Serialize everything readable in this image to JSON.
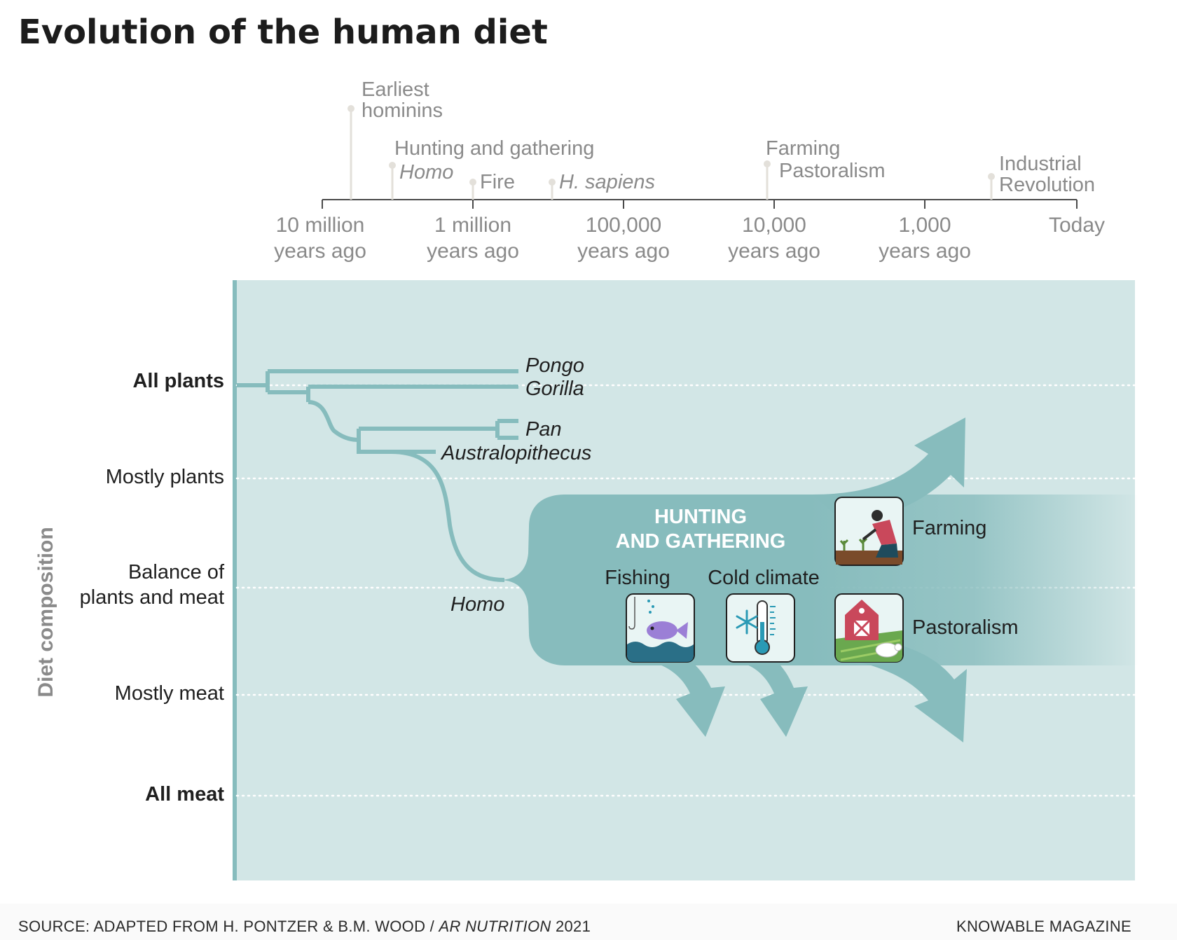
{
  "title": "Evolution of the human diet",
  "timeline": {
    "ticks": [
      {
        "line1": "10 million",
        "line2": "years ago"
      },
      {
        "line1": "1 million",
        "line2": "years ago"
      },
      {
        "line1": "100,000",
        "line2": "years ago"
      },
      {
        "line1": "10,000",
        "line2": "years ago"
      },
      {
        "line1": "1,000",
        "line2": "years ago"
      },
      {
        "line1": "Today",
        "line2": ""
      }
    ],
    "events": {
      "earliest_hominins": {
        "line1": "Earliest",
        "line2": "hominins"
      },
      "hunting_gathering": "Hunting and gathering",
      "homo": "Homo",
      "fire": "Fire",
      "h_sapiens": "H. sapiens",
      "farming": "Farming",
      "pastoralism": "Pastoralism",
      "industrial": {
        "line1": "Industrial",
        "line2": "Revolution"
      }
    }
  },
  "y_axis": {
    "title": "Diet composition",
    "levels": {
      "all_plants": "All plants",
      "mostly_plants": "Mostly plants",
      "balance_line1": "Balance of",
      "balance_line2": "plants and meat",
      "mostly_meat": "Mostly meat",
      "all_meat": "All meat"
    }
  },
  "tree": {
    "pongo": "Pongo",
    "gorilla": "Gorilla",
    "pan": "Pan",
    "australopithecus": "Australopithecus",
    "homo": "Homo"
  },
  "band": {
    "title_line1": "HUNTING",
    "title_line2": "AND GATHERING",
    "fishing": "Fishing",
    "cold_climate": "Cold climate",
    "farming": "Farming",
    "pastoralism": "Pastoralism"
  },
  "icons": [
    "farmer-icon",
    "fish-icon",
    "thermometer-icon",
    "barn-icon"
  ],
  "colors": {
    "panel": "#d2e6e6",
    "teal": "#87bcbd",
    "axis_line": "#86bcbd",
    "icon_blue": "#2a6f87",
    "barn_red": "#c9485b"
  },
  "footer": {
    "source_prefix": "SOURCE: ADAPTED FROM H. PONTZER & B.M. WOOD / ",
    "source_journal": "AR NUTRITION",
    "source_year": " 2021",
    "publisher": "KNOWABLE MAGAZINE"
  }
}
